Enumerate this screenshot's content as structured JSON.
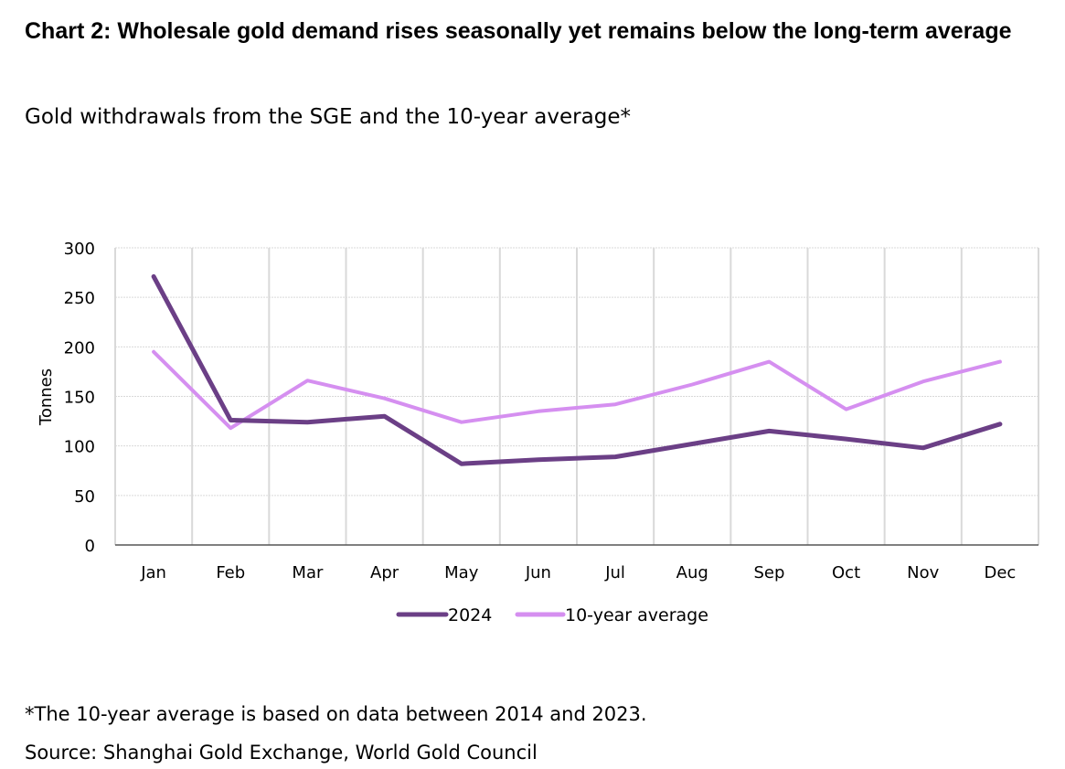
{
  "header": {
    "title": "Chart 2: Wholesale gold demand rises seasonally yet remains below the long-term average",
    "subtitle": "Gold withdrawals from the SGE and the 10-year average*"
  },
  "notes": {
    "footnote": "*The 10-year average is based on data between 2014 and 2023.",
    "source": "Source: Shanghai Gold Exchange, World Gold Council"
  },
  "chart_data": {
    "type": "line",
    "categories": [
      "Jan",
      "Feb",
      "Mar",
      "Apr",
      "May",
      "Jun",
      "Jul",
      "Aug",
      "Sep",
      "Oct",
      "Nov",
      "Dec"
    ],
    "ylabel": "Tonnes",
    "xlabel": "",
    "ylim": [
      0,
      300
    ],
    "yticks": [
      0,
      50,
      100,
      150,
      200,
      250,
      300
    ],
    "grid": true,
    "legend_position": "bottom-center",
    "series": [
      {
        "name": "2024",
        "color": "#6b3f86",
        "values": [
          271,
          126,
          124,
          130,
          82,
          86,
          89,
          102,
          115,
          107,
          98,
          122
        ]
      },
      {
        "name": "10-year average",
        "color": "#d58ff0",
        "values": [
          195,
          118,
          166,
          148,
          124,
          135,
          142,
          162,
          185,
          137,
          165,
          185
        ]
      }
    ]
  }
}
